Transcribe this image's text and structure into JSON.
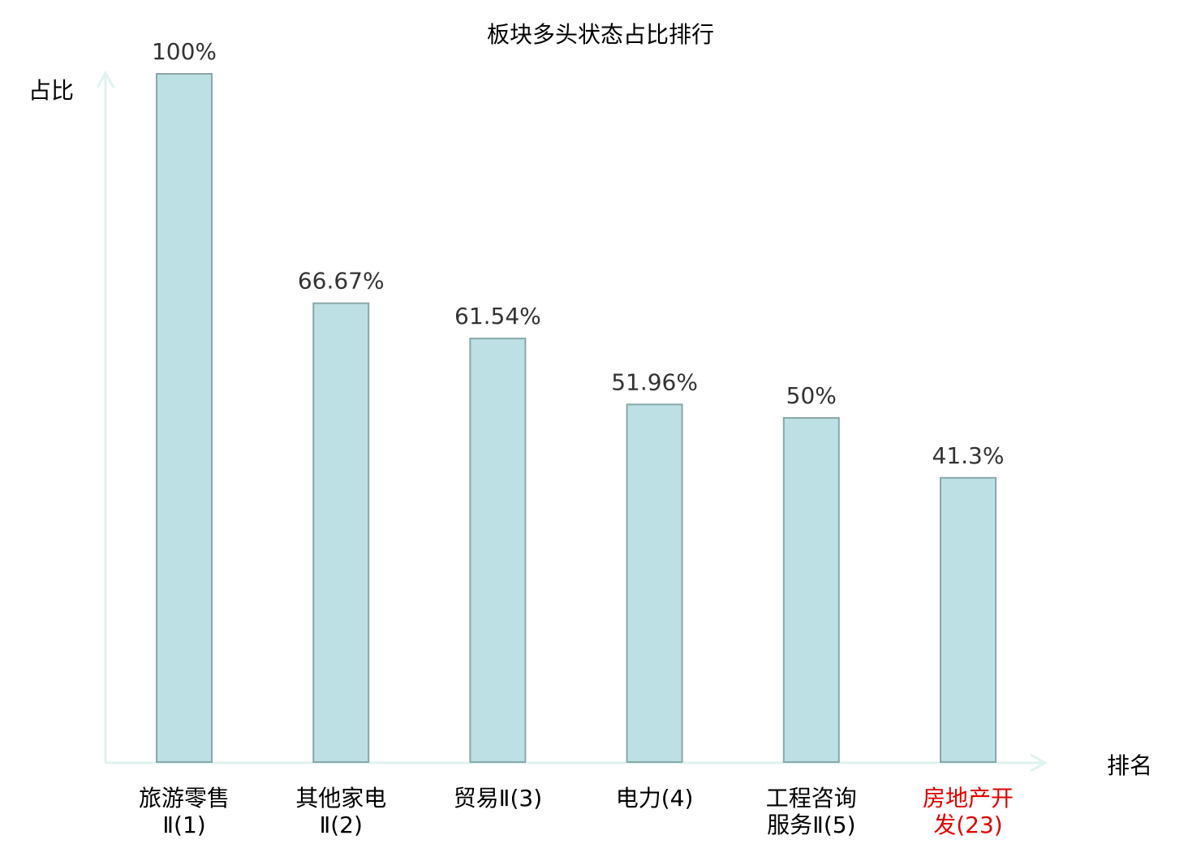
{
  "chart_data": {
    "type": "bar",
    "title": "板块多头状态占比排行",
    "xlabel": "排名",
    "ylabel": "占比",
    "categories": [
      "旅游零售Ⅱ(1)",
      "其他家电Ⅱ(2)",
      "贸易Ⅱ(3)",
      "电力(4)",
      "工程咨询服务Ⅱ(5)",
      "房地产开发(23)"
    ],
    "values": [
      100,
      66.67,
      61.54,
      51.96,
      50,
      41.3
    ],
    "value_labels": [
      "100%",
      "66.67%",
      "61.54%",
      "51.96%",
      "50%",
      "41.3%"
    ],
    "unit": "%",
    "ylim": [
      0,
      100
    ],
    "grid": false,
    "highlight_index": 5,
    "colors": {
      "bar_fill": "#bce0e3",
      "bar_stroke": "#88a8a8",
      "axis": "#dff2f0",
      "text": "#000000",
      "value_text": "#333333",
      "highlight": "#e00000"
    }
  }
}
